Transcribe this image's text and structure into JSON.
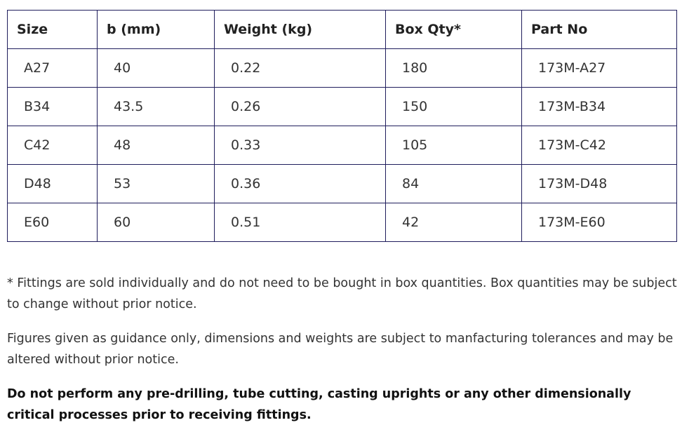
{
  "table": {
    "headers": [
      "Size",
      "b (mm)",
      "Weight (kg)",
      "Box Qty*",
      "Part No"
    ],
    "rows": [
      [
        "A27",
        "40",
        "0.22",
        "180",
        "173M-A27"
      ],
      [
        "B34",
        "43.5",
        "0.26",
        "150",
        "173M-B34"
      ],
      [
        "C42",
        "48",
        "0.33",
        "105",
        "173M-C42"
      ],
      [
        "D48",
        "53",
        "0.36",
        "84",
        "173M-D48"
      ],
      [
        "E60",
        "60",
        "0.51",
        "42",
        "173M-E60"
      ]
    ]
  },
  "notes": {
    "box_qty_note": "* Fittings are sold individually and do not need to be bought in box quantities. Box quantities may be subject to change without prior notice.",
    "guidance_note": "Figures given as guidance only, dimensions and weights are subject to manfacturing tolerances and may be altered without prior notice.",
    "warning_note": "Do not perform any pre-drilling, tube cutting, casting uprights or any other dimensionally critical processes prior to receiving fittings."
  },
  "colors": {
    "border": "#1f1d5c",
    "text": "#333333"
  }
}
